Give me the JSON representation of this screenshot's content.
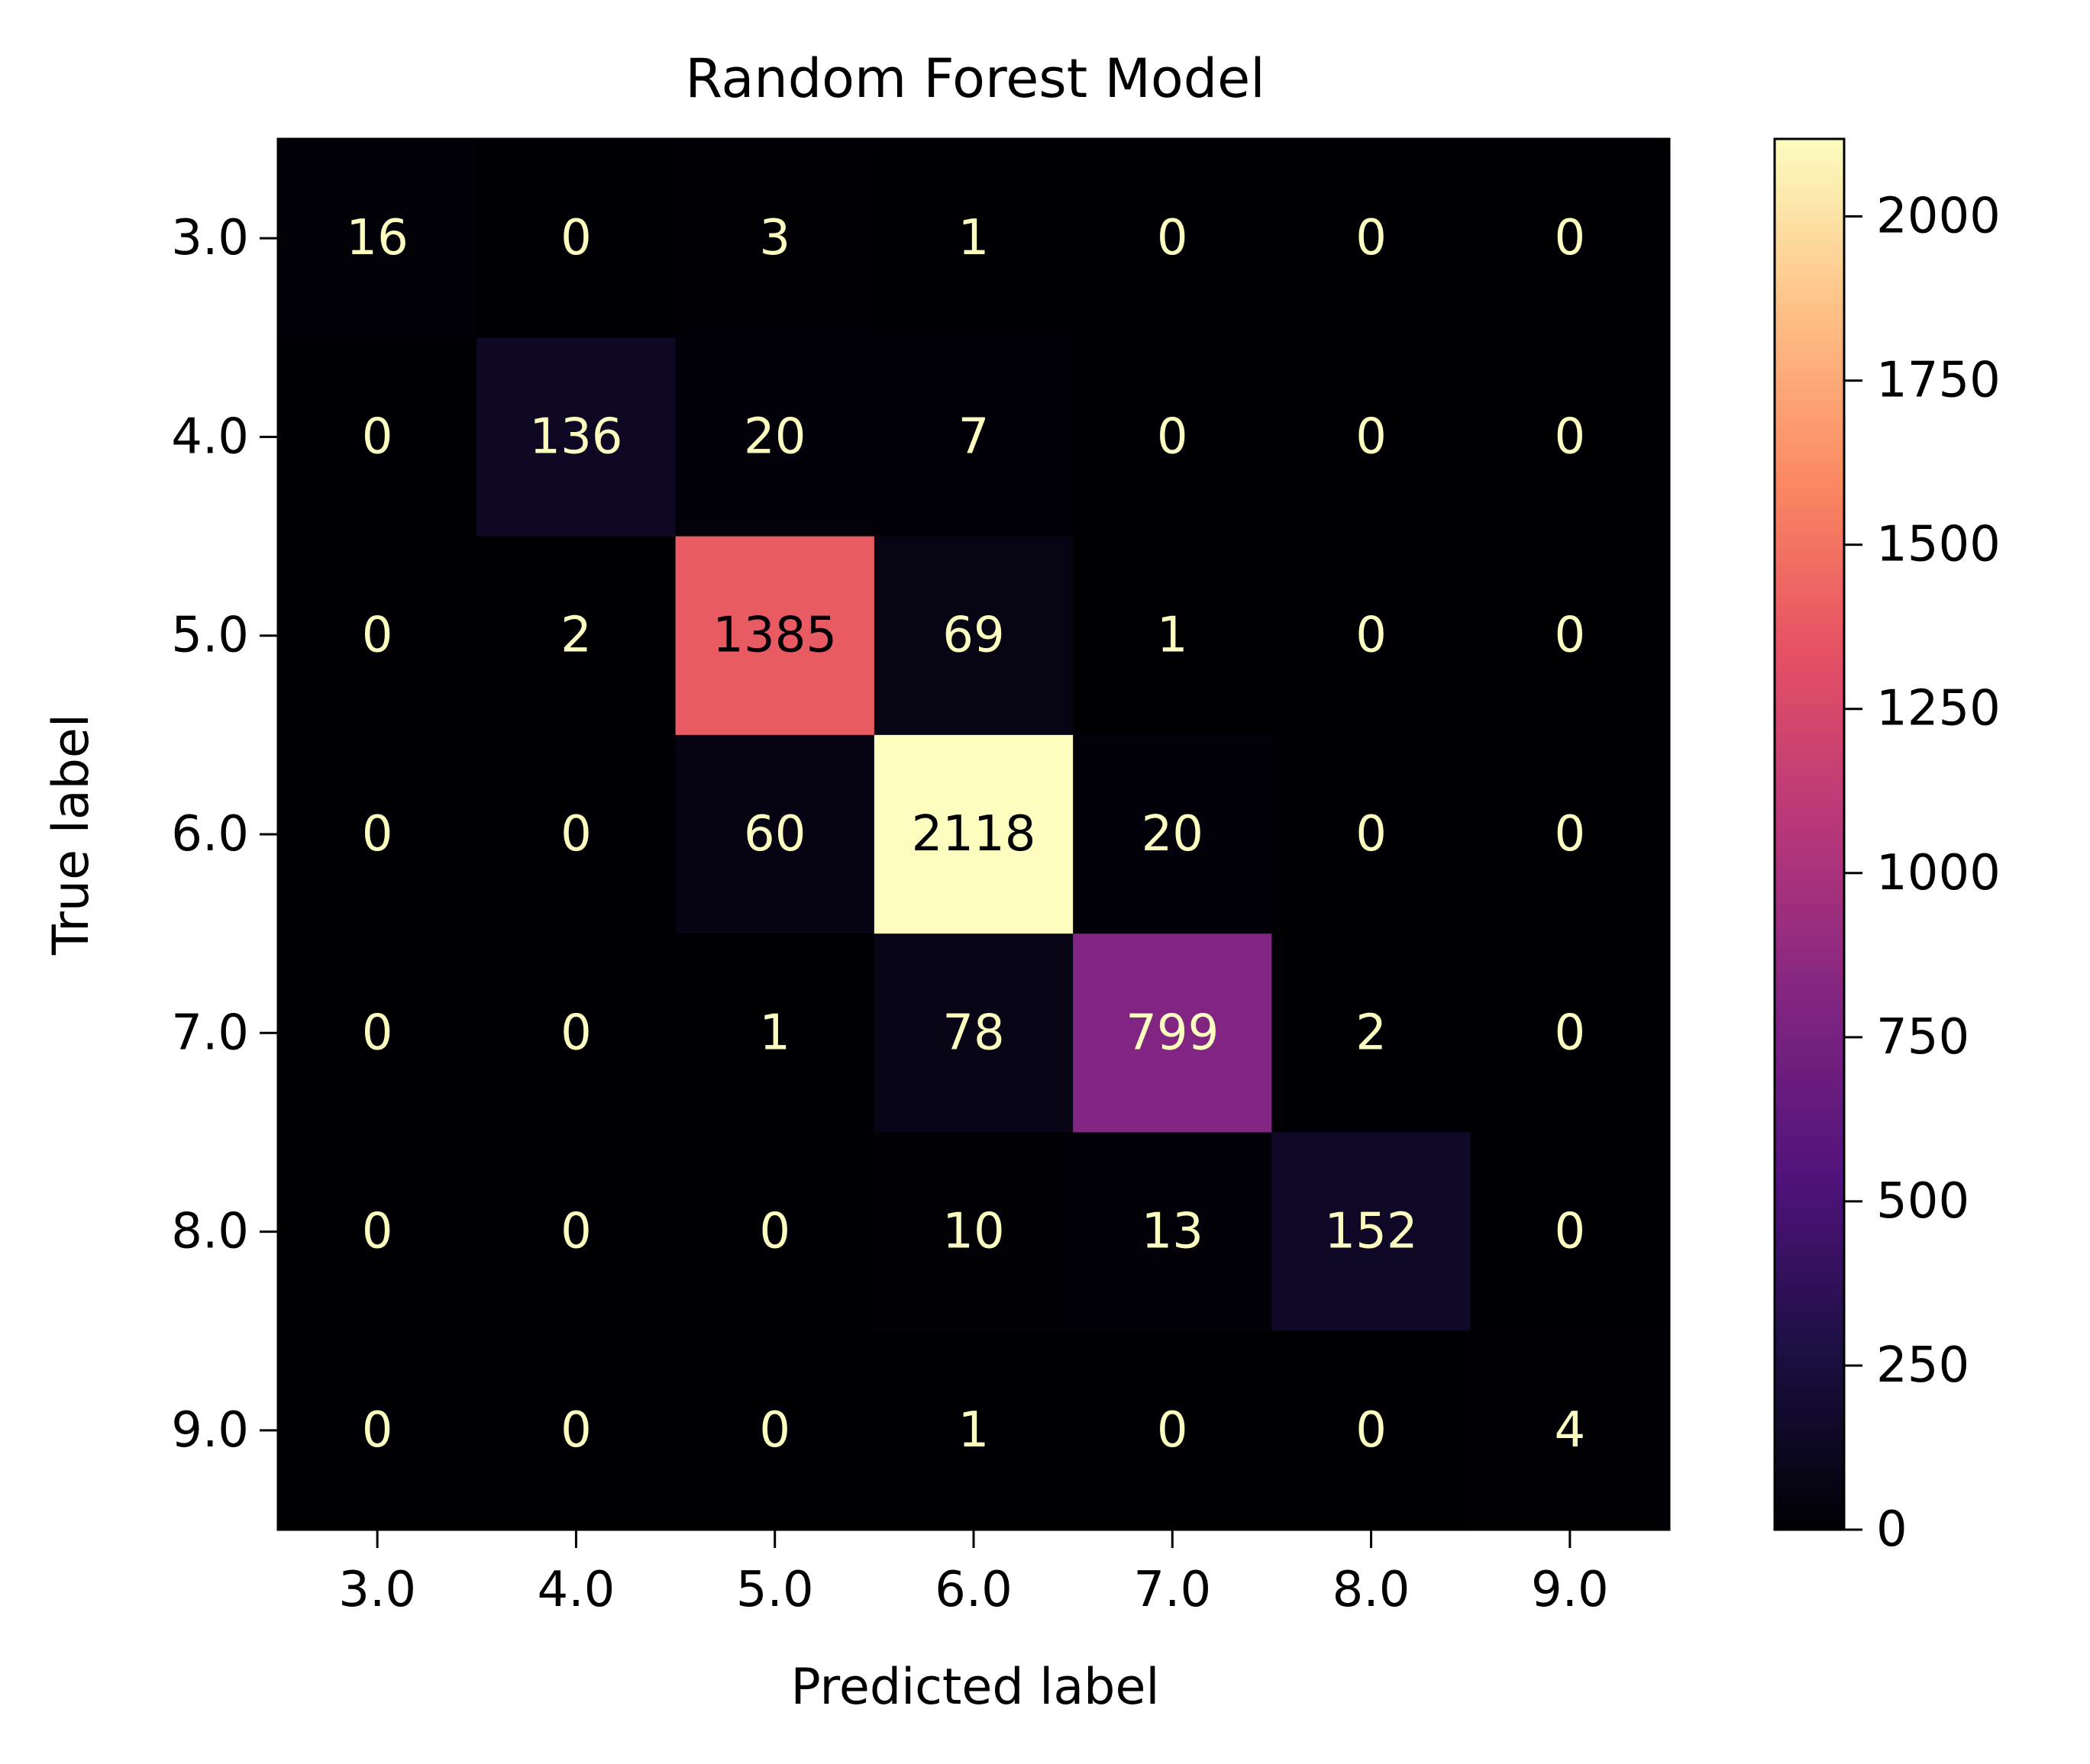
{
  "chart_data": {
    "type": "heatmap",
    "title": "Random Forest Model",
    "xlabel": "Predicted label",
    "ylabel": "True label",
    "x_categories": [
      "3.0",
      "4.0",
      "5.0",
      "6.0",
      "7.0",
      "8.0",
      "9.0"
    ],
    "y_categories": [
      "3.0",
      "4.0",
      "5.0",
      "6.0",
      "7.0",
      "8.0",
      "9.0"
    ],
    "matrix": [
      [
        16,
        0,
        3,
        1,
        0,
        0,
        0
      ],
      [
        0,
        136,
        20,
        7,
        0,
        0,
        0
      ],
      [
        0,
        2,
        1385,
        69,
        1,
        0,
        0
      ],
      [
        0,
        0,
        60,
        2118,
        20,
        0,
        0
      ],
      [
        0,
        0,
        1,
        78,
        799,
        2,
        0
      ],
      [
        0,
        0,
        0,
        10,
        13,
        152,
        0
      ],
      [
        0,
        0,
        0,
        1,
        0,
        0,
        4
      ]
    ],
    "colormap": "magma",
    "colorbar": {
      "range": [
        0,
        2118
      ],
      "ticks": [
        0,
        250,
        500,
        750,
        1000,
        1250,
        1500,
        1750,
        2000
      ]
    },
    "text_colors": {
      "light": "#fcfdbf",
      "dark": "#000004"
    }
  }
}
